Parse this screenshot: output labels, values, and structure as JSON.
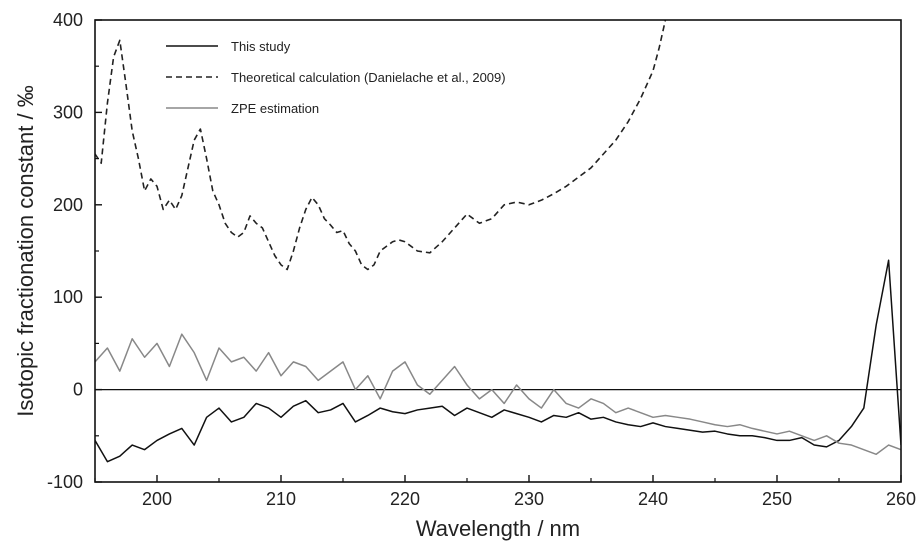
{
  "chart_data": {
    "type": "line",
    "title": "",
    "xlabel": "Wavelength / nm",
    "ylabel": "Isotopic fractionation constant / ‰",
    "xlim": [
      195,
      260
    ],
    "ylim": [
      -100,
      400
    ],
    "xticks": [
      200,
      210,
      220,
      230,
      240,
      250,
      260
    ],
    "yticks": [
      -100,
      0,
      100,
      200,
      300,
      400
    ],
    "grid": false,
    "legend_position": "top-left",
    "zero_line": true,
    "series": [
      {
        "name": "This study",
        "color": "#111111",
        "style": "solid",
        "x": [
          195,
          196,
          197,
          198,
          199,
          200,
          201,
          202,
          203,
          204,
          205,
          206,
          207,
          208,
          209,
          210,
          211,
          212,
          213,
          214,
          215,
          216,
          217,
          218,
          219,
          220,
          221,
          222,
          223,
          224,
          225,
          226,
          227,
          228,
          229,
          230,
          231,
          232,
          233,
          234,
          235,
          236,
          237,
          238,
          239,
          240,
          241,
          242,
          243,
          244,
          245,
          246,
          247,
          248,
          249,
          250,
          251,
          252,
          253,
          254,
          255,
          256,
          257,
          258,
          259,
          260
        ],
        "y": [
          -55,
          -78,
          -72,
          -60,
          -65,
          -55,
          -48,
          -42,
          -60,
          -30,
          -20,
          -35,
          -30,
          -15,
          -20,
          -30,
          -18,
          -12,
          -25,
          -22,
          -15,
          -35,
          -28,
          -20,
          -24,
          -26,
          -22,
          -20,
          -18,
          -28,
          -20,
          -25,
          -30,
          -22,
          -26,
          -30,
          -35,
          -28,
          -30,
          -25,
          -32,
          -30,
          -35,
          -38,
          -40,
          -36,
          -40,
          -42,
          -44,
          -46,
          -45,
          -48,
          -50,
          -50,
          -52,
          -55,
          -55,
          -52,
          -60,
          -62,
          -55,
          -40,
          -20,
          70,
          140,
          -60
        ]
      },
      {
        "name": "Theoretical calculation (Danielache et al., 2009)",
        "color": "#222222",
        "style": "dashed",
        "x": [
          195,
          195.5,
          196,
          196.5,
          197,
          197.5,
          198,
          198.5,
          199,
          199.5,
          200,
          200.5,
          201,
          201.5,
          202,
          202.5,
          203,
          203.5,
          204,
          204.5,
          205,
          205.5,
          206,
          206.5,
          207,
          207.5,
          208,
          208.5,
          209,
          209.5,
          210,
          210.5,
          211,
          211.5,
          212,
          212.5,
          213,
          213.5,
          214,
          214.5,
          215,
          215.5,
          216,
          216.5,
          217,
          217.5,
          218,
          218.5,
          219,
          219.5,
          220,
          221,
          222,
          223,
          224,
          225,
          226,
          227,
          228,
          229,
          230,
          231,
          232,
          233,
          234,
          235,
          236,
          237,
          238,
          239,
          240,
          240.5,
          241
        ],
        "y": [
          255,
          245,
          310,
          360,
          378,
          330,
          280,
          250,
          215,
          228,
          220,
          195,
          205,
          195,
          210,
          240,
          270,
          282,
          250,
          215,
          200,
          180,
          170,
          165,
          170,
          188,
          180,
          175,
          160,
          145,
          135,
          130,
          150,
          175,
          195,
          208,
          200,
          185,
          178,
          170,
          172,
          158,
          150,
          135,
          130,
          135,
          150,
          155,
          160,
          162,
          160,
          150,
          148,
          160,
          175,
          190,
          180,
          185,
          200,
          203,
          200,
          205,
          212,
          220,
          230,
          240,
          255,
          270,
          290,
          315,
          345,
          370,
          400
        ]
      },
      {
        "name": "ZPE estimation",
        "color": "#888888",
        "style": "solid",
        "x": [
          195,
          196,
          197,
          198,
          199,
          200,
          201,
          202,
          203,
          204,
          205,
          206,
          207,
          208,
          209,
          210,
          211,
          212,
          213,
          214,
          215,
          216,
          217,
          218,
          219,
          220,
          221,
          222,
          223,
          224,
          225,
          226,
          227,
          228,
          229,
          230,
          231,
          232,
          233,
          234,
          235,
          236,
          237,
          238,
          239,
          240,
          241,
          242,
          243,
          244,
          245,
          246,
          247,
          248,
          249,
          250,
          251,
          252,
          253,
          254,
          255,
          256,
          257,
          258,
          259,
          260
        ],
        "y": [
          30,
          45,
          20,
          55,
          35,
          50,
          25,
          60,
          40,
          10,
          45,
          30,
          35,
          20,
          40,
          15,
          30,
          25,
          10,
          20,
          30,
          0,
          15,
          -10,
          20,
          30,
          5,
          -5,
          10,
          25,
          5,
          -10,
          0,
          -15,
          5,
          -10,
          -20,
          0,
          -15,
          -20,
          -10,
          -15,
          -25,
          -20,
          -25,
          -30,
          -28,
          -30,
          -32,
          -35,
          -38,
          -40,
          -38,
          -42,
          -45,
          -48,
          -45,
          -50,
          -55,
          -50,
          -58,
          -60,
          -65,
          -70,
          -60,
          -65
        ]
      }
    ]
  }
}
